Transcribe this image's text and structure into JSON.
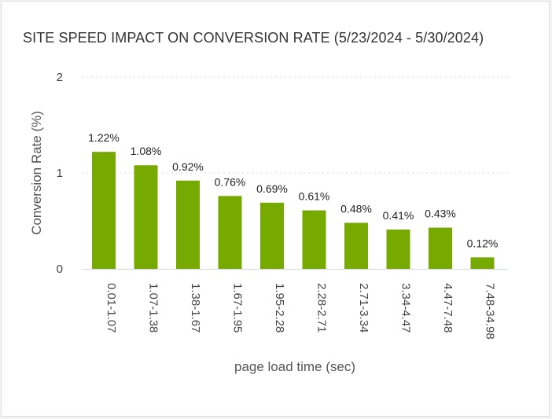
{
  "chart_data": {
    "type": "bar",
    "title": "SITE SPEED IMPACT ON CONVERSION RATE (5/23/2024 - 5/30/2024)",
    "xlabel": "page load time (sec)",
    "ylabel": "Conversion Rate (%)",
    "ylim": [
      0,
      2
    ],
    "yticks": [
      "0",
      "1",
      "2"
    ],
    "grid": true,
    "categories": [
      "0.01-1.07",
      "1.07-1.38",
      "1.38-1.67",
      "1.67-1.95",
      "1.95-2.28",
      "2.28-2.71",
      "2.71-3.34",
      "3.34-4.47",
      "4.47-7.48",
      "7.48-34.98"
    ],
    "values": [
      1.22,
      1.08,
      0.92,
      0.76,
      0.69,
      0.61,
      0.48,
      0.41,
      0.43,
      0.12
    ],
    "data_labels": [
      "1.22%",
      "1.08%",
      "0.92%",
      "0.76%",
      "0.69%",
      "0.61%",
      "0.48%",
      "0.41%",
      "0.43%",
      "0.12%"
    ],
    "bar_color": "#77aa00"
  }
}
